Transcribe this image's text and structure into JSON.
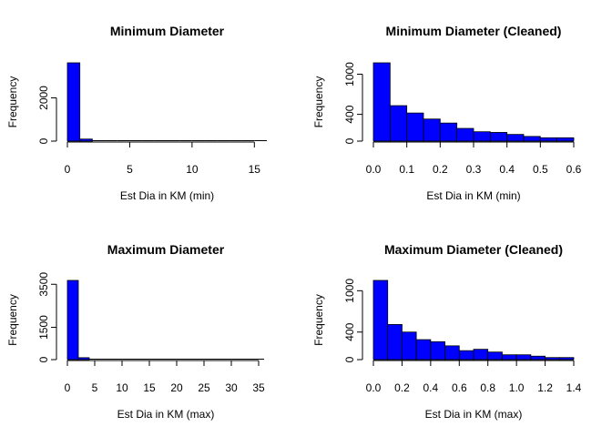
{
  "chart_data": [
    {
      "type": "bar",
      "title": "Minimum Diameter",
      "xlabel": "Est Dia in KM (min)",
      "ylabel": "Frequency",
      "bar_color": "#0000FF",
      "bin_edges": [
        0,
        1,
        2,
        3,
        4,
        5,
        6,
        7,
        8,
        9,
        10,
        11,
        12,
        13,
        14,
        15,
        16
      ],
      "values": [
        3620,
        95,
        20,
        10,
        5,
        3,
        2,
        2,
        1,
        1,
        1,
        1,
        1,
        1,
        1,
        1
      ],
      "xlim": [
        0,
        16
      ],
      "ylim": [
        0,
        3620
      ],
      "x_ticks": [
        0,
        5,
        10,
        15
      ],
      "x_tick_labels": [
        "0",
        "5",
        "10",
        "15"
      ],
      "y_ticks": [
        0,
        2000
      ],
      "y_tick_labels": [
        "0",
        "2000"
      ]
    },
    {
      "type": "bar",
      "title": "Minimum Diameter (Cleaned)",
      "xlabel": "Est Dia in KM (min)",
      "ylabel": "Frequency",
      "bar_color": "#0000FF",
      "bin_edges": [
        0,
        0.05,
        0.1,
        0.15,
        0.2,
        0.25,
        0.3,
        0.35,
        0.4,
        0.45,
        0.5,
        0.55,
        0.6
      ],
      "values": [
        1170,
        530,
        420,
        330,
        270,
        190,
        140,
        130,
        100,
        70,
        50,
        50
      ],
      "xlim": [
        0,
        0.6
      ],
      "ylim": [
        0,
        1170
      ],
      "x_ticks": [
        0,
        0.1,
        0.2,
        0.3,
        0.4,
        0.5,
        0.6
      ],
      "x_tick_labels": [
        "0.0",
        "0.1",
        "0.2",
        "0.3",
        "0.4",
        "0.5",
        "0.6"
      ],
      "y_ticks": [
        0,
        400,
        1000
      ],
      "y_tick_labels": [
        "0",
        "400",
        "1000"
      ]
    },
    {
      "type": "bar",
      "title": "Maximum Diameter",
      "xlabel": "Est Dia in KM (max)",
      "ylabel": "Frequency",
      "bar_color": "#0000FF",
      "bin_edges": [
        0,
        2,
        4,
        6,
        8,
        10,
        12,
        14,
        16,
        18,
        20,
        22,
        24,
        26,
        28,
        30,
        32,
        34,
        36
      ],
      "values": [
        3680,
        90,
        20,
        10,
        5,
        3,
        2,
        2,
        1,
        1,
        1,
        1,
        1,
        1,
        1,
        1,
        1,
        1
      ],
      "xlim": [
        0,
        36
      ],
      "ylim": [
        0,
        3680
      ],
      "x_ticks": [
        0,
        5,
        10,
        15,
        20,
        25,
        30,
        35
      ],
      "x_tick_labels": [
        "0",
        "5",
        "10",
        "15",
        "20",
        "25",
        "30",
        "35"
      ],
      "y_ticks": [
        0,
        1500,
        3500
      ],
      "y_tick_labels": [
        "0",
        "1500",
        "3500"
      ]
    },
    {
      "type": "bar",
      "title": "Maximum Diameter (Cleaned)",
      "xlabel": "Est Dia in KM (max)",
      "ylabel": "Frequency",
      "bar_color": "#0000FF",
      "bin_edges": [
        0,
        0.1,
        0.2,
        0.3,
        0.4,
        0.5,
        0.6,
        0.7,
        0.8,
        0.9,
        1.0,
        1.1,
        1.2,
        1.3,
        1.4
      ],
      "values": [
        1150,
        510,
        400,
        290,
        260,
        200,
        130,
        150,
        110,
        70,
        70,
        50,
        30,
        30
      ],
      "xlim": [
        0,
        1.4
      ],
      "ylim": [
        0,
        1150
      ],
      "x_ticks": [
        0,
        0.2,
        0.4,
        0.6,
        0.8,
        1.0,
        1.2,
        1.4
      ],
      "x_tick_labels": [
        "0.0",
        "0.2",
        "0.4",
        "0.6",
        "0.8",
        "1.0",
        "1.2",
        "1.4"
      ],
      "y_ticks": [
        0,
        400,
        1000
      ],
      "y_tick_labels": [
        "0",
        "400",
        "1000"
      ]
    }
  ]
}
